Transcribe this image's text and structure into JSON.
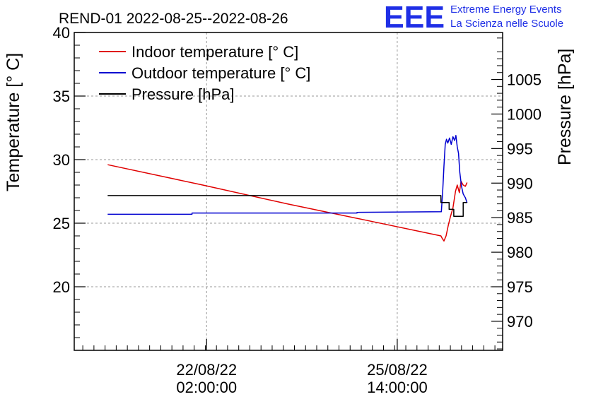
{
  "chart_data": {
    "type": "line",
    "title": "REND-01 2022-08-25--2022-08-26",
    "logo": {
      "letters": "EEE",
      "line1": "Extreme Energy Events",
      "line2": "La Scienza nelle Scuole"
    },
    "y_left": {
      "label": "Temperature [° C]",
      "range": [
        15,
        40
      ],
      "major_ticks": [
        20,
        25,
        30,
        35,
        40
      ],
      "tick_labels": [
        "20",
        "25",
        "30",
        "35",
        "40"
      ]
    },
    "y_right": {
      "label": "Pressure [hPa]",
      "range": [
        965.8,
        1011.8
      ],
      "major_ticks": [
        970,
        975,
        980,
        985,
        990,
        995,
        1000,
        1005
      ],
      "tick_labels": [
        "970",
        "975",
        "980",
        "985",
        "990",
        "995",
        "1000",
        "1005"
      ]
    },
    "x_axis": {
      "range": [
        0,
        100
      ],
      "tick_labels": [
        {
          "x": 30.9,
          "date": "22/08/22",
          "time": "02:00:00"
        },
        {
          "x": 75.4,
          "date": "25/08/22",
          "time": "14:00:00"
        }
      ]
    },
    "grid": true,
    "legend": {
      "position": "top-left",
      "entries": [
        "Indoor temperature [° C]",
        "Outdoor temperature [° C]",
        "Pressure [hPa]"
      ]
    },
    "series": [
      {
        "name": "Indoor temperature [° C]",
        "axis": "left",
        "color": "#e00000",
        "x": [
          7.8,
          30,
          50,
          70,
          85.6,
          85.9,
          86.3,
          86.8,
          87.3,
          87.8,
          88.4,
          89.0,
          89.4,
          89.9,
          90.3,
          90.8,
          91.3,
          91.7
        ],
        "y": [
          29.6,
          28.0,
          26.5,
          25.1,
          24.0,
          23.8,
          23.6,
          24.0,
          24.8,
          25.5,
          26.2,
          27.5,
          28.0,
          27.4,
          28.3,
          28.0,
          27.9,
          28.2
        ]
      },
      {
        "name": "Outdoor temperature [° C]",
        "axis": "left",
        "color": "#0000d0",
        "x": [
          7.8,
          27.5,
          27.5,
          66.0,
          66.0,
          85.7,
          86.0,
          86.3,
          86.6,
          86.9,
          87.2,
          87.6,
          88.0,
          88.4,
          88.8,
          89.1,
          89.4,
          89.7,
          90.0,
          90.4,
          90.8,
          91.3,
          91.7
        ],
        "y": [
          25.7,
          25.7,
          25.8,
          25.8,
          25.85,
          25.9,
          27.5,
          29.5,
          31.2,
          31.6,
          31.3,
          31.7,
          31.2,
          31.8,
          31.5,
          31.9,
          31.0,
          30.5,
          29.0,
          27.9,
          27.3,
          27.0,
          26.6
        ]
      },
      {
        "name": "Pressure [hPa]",
        "axis": "right",
        "color": "#000000",
        "x": [
          7.8,
          85.6,
          85.6,
          87.5,
          87.5,
          88.6,
          88.6,
          90.8,
          90.8,
          91.7
        ],
        "y": [
          988.2,
          988.2,
          987.2,
          987.2,
          986.2,
          986.2,
          985.2,
          985.2,
          987.2,
          987.2
        ]
      }
    ]
  }
}
